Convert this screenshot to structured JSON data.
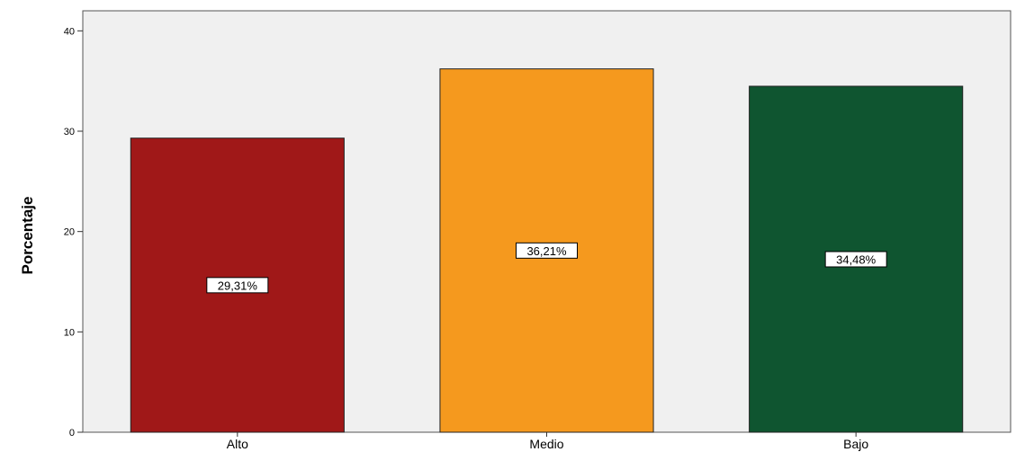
{
  "chart_data": {
    "type": "bar",
    "title": "",
    "xlabel": "",
    "ylabel": "Porcentaje",
    "categories": [
      "Alto",
      "Medio",
      "Bajo"
    ],
    "values": [
      29.31,
      36.21,
      34.48
    ],
    "data_labels": [
      "29,31%",
      "36,21%",
      "34,48%"
    ],
    "colors": [
      "#a01818",
      "#f5991e",
      "#0f5530"
    ],
    "ylim": [
      0,
      42
    ],
    "yticks": [
      0,
      10,
      20,
      30,
      40
    ],
    "ytick_labels": [
      "0",
      "10",
      "20",
      "30",
      "40"
    ],
    "grid": false,
    "legend": "none",
    "plot_background": "#f0f0f0"
  }
}
